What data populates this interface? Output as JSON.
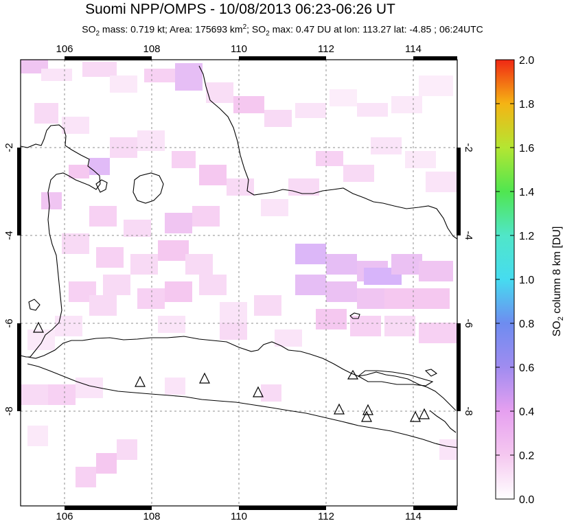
{
  "header": {
    "title": "Suomi NPP/OMPS - 10/08/2013 06:23-06:26 UT",
    "subtitle_prefix": "SO",
    "subtitle_rest": " mass: 0.719 kt; Area: 175693 km",
    "subtitle_sq": "2",
    "subtitle_mid": "; SO",
    "subtitle_end": " max: 0.47 DU at lon: 113.27 lat: -4.85 ; 06:24UTC",
    "sub2": "2"
  },
  "map": {
    "lon_ticks": [
      "106",
      "108",
      "110",
      "112",
      "114"
    ],
    "lat_ticks": [
      "-2",
      "-4",
      "-6",
      "-8"
    ],
    "lon_range": [
      105,
      115
    ],
    "lat_range": [
      -10,
      0.2
    ],
    "volcano_count": 10
  },
  "colorbar": {
    "label_main": "SO",
    "label_sub": "2",
    "label_rest": " column 8 km [DU]",
    "ticks": [
      "0.0",
      "0.2",
      "0.4",
      "0.6",
      "0.8",
      "1.0",
      "1.2",
      "1.4",
      "1.6",
      "1.8",
      "2.0"
    ],
    "range": [
      0,
      2
    ],
    "colors": [
      "#ffffff",
      "#f5c8f0",
      "#c8a0f0",
      "#6e78f0",
      "#46c8f0",
      "#50f0f0",
      "#50e6a0",
      "#78e050",
      "#dce628",
      "#f5a014",
      "#f03c14"
    ]
  }
}
